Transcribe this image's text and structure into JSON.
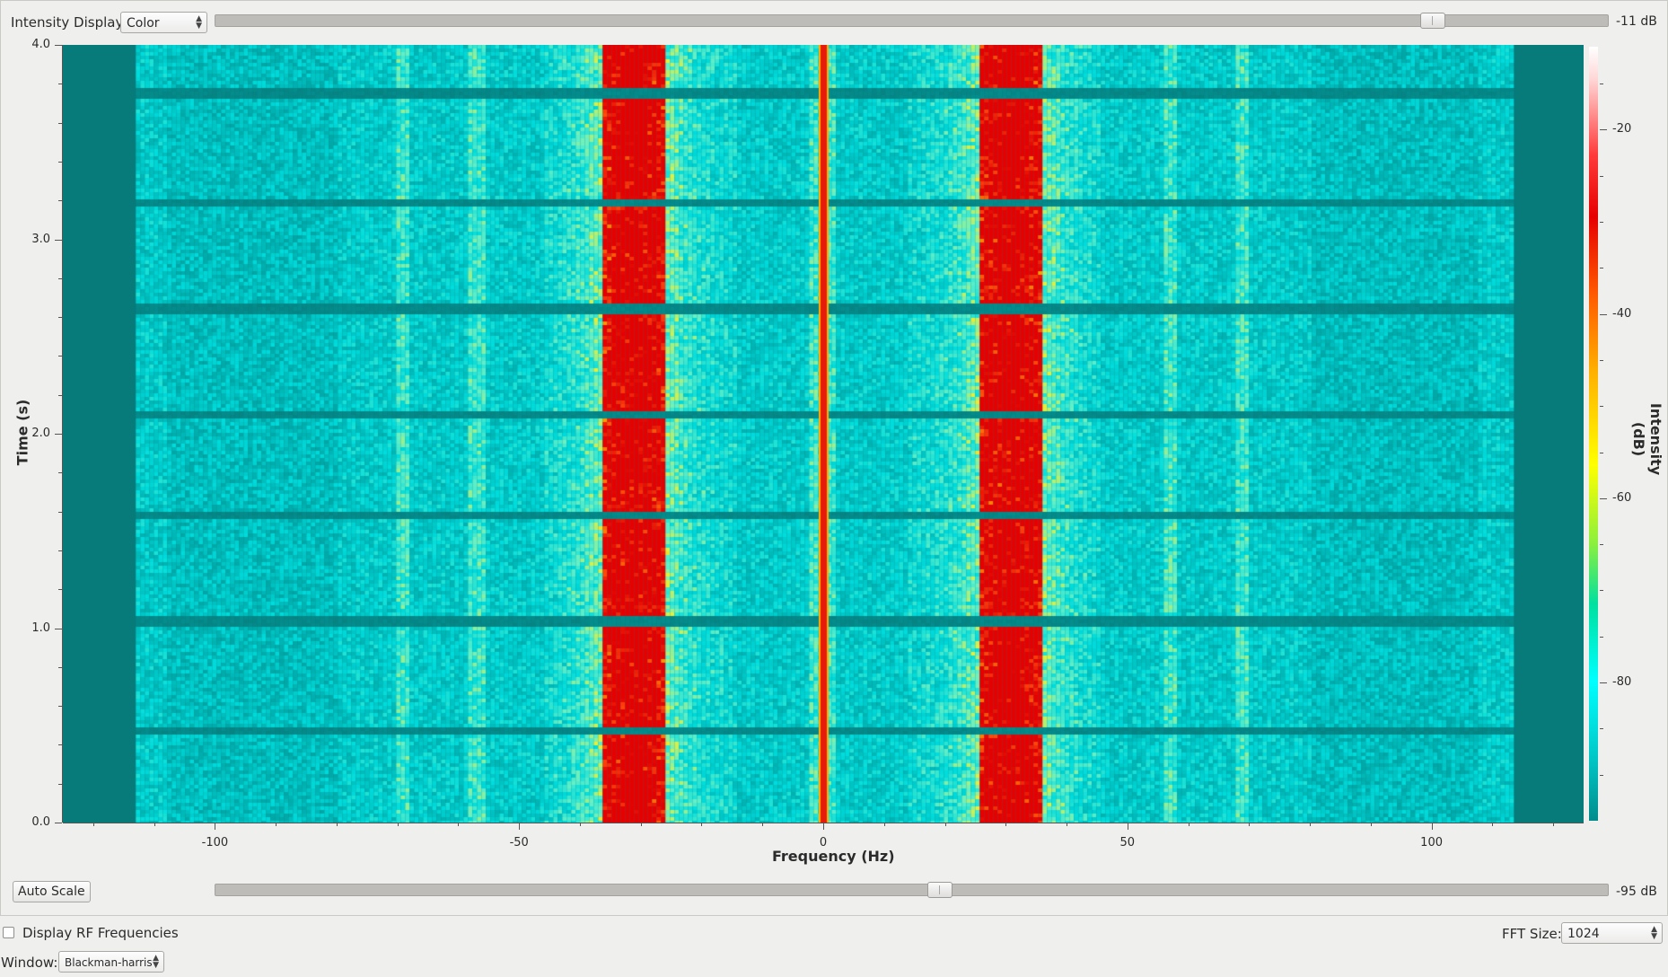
{
  "controls": {
    "intensity_display_label": "Intensity Display:",
    "intensity_display_value": "Color",
    "max_db_label": "-11 dB",
    "max_slider_level": 0.88,
    "min_db_label": "-95 dB",
    "min_slider_level": 0.52,
    "auto_scale_label": "Auto Scale",
    "display_rf_label": "Display RF Frequencies",
    "display_rf_checked": false,
    "fft_size_label": "FFT Size:",
    "fft_size_value": "1024",
    "window_label": "Window:",
    "window_value": "Blackman-harris"
  },
  "chart_data": {
    "type": "heatmap",
    "xlabel": "Frequency (Hz)",
    "ylabel": "Time (s)",
    "colorbar_label": "Intensity (dB)",
    "xlim": [
      -125,
      125
    ],
    "ylim": [
      0.0,
      4.0
    ],
    "x_ticks": [
      "-100",
      "-50",
      "0",
      "50",
      "100"
    ],
    "x_tick_values": [
      -100,
      -50,
      0,
      50,
      100
    ],
    "y_ticks": [
      "0.0",
      "1.0",
      "2.0",
      "3.0",
      "4.0"
    ],
    "y_tick_values": [
      0.0,
      1.0,
      2.0,
      3.0,
      4.0
    ],
    "colorbar_ticks": [
      "-20",
      "-40",
      "-60",
      "-80"
    ],
    "colorbar_tick_values": [
      -20,
      -40,
      -60,
      -80
    ],
    "colorbar_range": [
      -95,
      -11
    ],
    "features": {
      "dc_carrier_hz": 0,
      "strong_bands_hz": [
        -34,
        -31,
        -28,
        28,
        31,
        34
      ],
      "weak_lines_hz": [
        -69,
        -57,
        -1,
        1,
        57,
        69
      ],
      "signal_extent_hz": [
        -113,
        113
      ],
      "gap_times_s": [
        0.48,
        1.04,
        1.59,
        2.11,
        2.65,
        3.2,
        3.76
      ]
    }
  }
}
